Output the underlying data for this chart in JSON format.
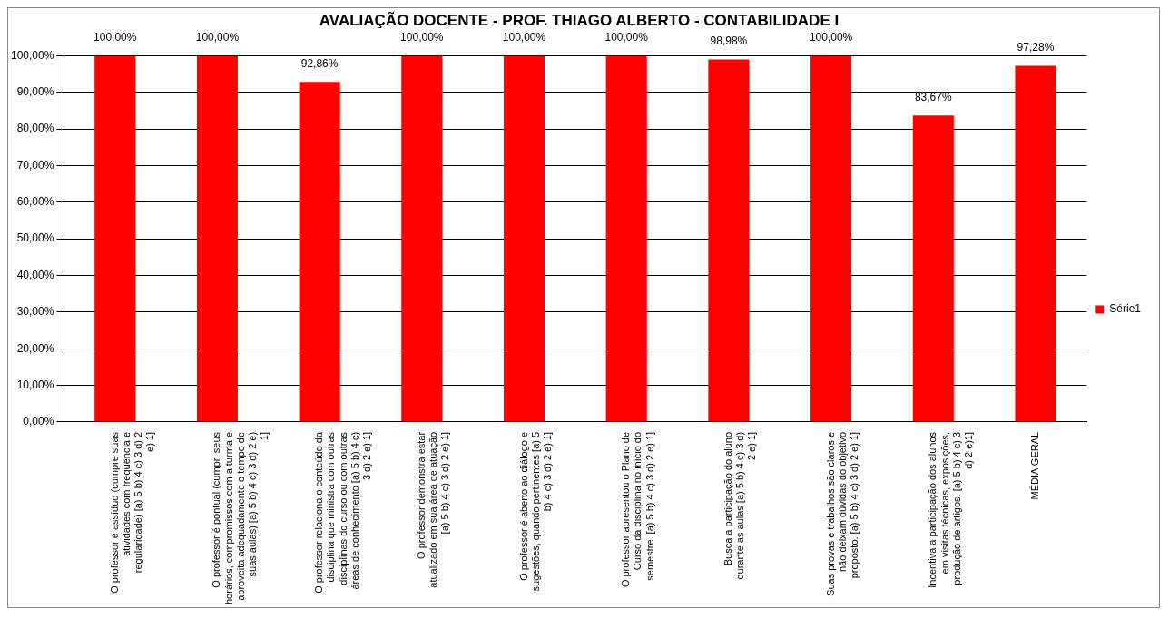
{
  "chart_data": {
    "type": "bar",
    "title": "AVALIAÇÃO DOCENTE - PROF. THIAGO ALBERTO - CONTABILIDADE I",
    "categories": [
      "O professor é assíduo (cumpre suas atividades com freqüência e regularidade) [a) 5 b) 4 c) 3 d) 2 e) 1]",
      "O professor é pontual (cumpri seus horários, compromissos com a turma e aproveita adequadamente o tempo de suas aulas) [a) 5 b) 4 c) 3 d) 2 e) 1]",
      "O professor relaciona o conteúdo da disciplina que ministra com outras disciplinas do curso ou com outras áreas de conhecimento [a) 5 b) 4 c) 3 d) 2 e) 1]",
      "O professor demonstra estar atualizado em sua área de atuação [a) 5 b) 4 c) 3 d) 2 e) 1]",
      "O professor é aberto ao diálogo e sugestões, quando pertinentes [a) 5 b) 4 c) 3 d) 2 e) 1]",
      "O professor apresentou o Plano de Curso da disciplina no início do semestre. [a) 5 b) 4 c) 3 d) 2 e) 1]",
      "Busca a participação do aluno durante as aulas [a) 5 b) 4 c) 3 d) 2 e) 1]",
      "Suas provas e trabalhos são claros e não deixam dúvidas do objetivo proposto. [a) 5 b) 4 c) 3 d) 2 e) 1]",
      "Incentiva a participação dos alunos em visitas técnicas, exposições, produção de artigos. [a) 5 b) 4 c) 3 d) 2 e)1]",
      "MÉDIA GERAL"
    ],
    "series": [
      {
        "name": "Série1",
        "color": "#ff0000",
        "values": [
          100,
          100,
          92.86,
          100,
          100,
          100,
          98.98,
          100,
          83.67,
          97.28
        ],
        "value_labels": [
          "100,00%",
          "100,00%",
          "92,86%",
          "100,00%",
          "100,00%",
          "100,00%",
          "98,98%",
          "100,00%",
          "83,67%",
          "97,28%"
        ]
      }
    ],
    "ylim": [
      0,
      100
    ],
    "yticks": [
      {
        "value": 0,
        "label": "0,00%"
      },
      {
        "value": 10,
        "label": "10,00%"
      },
      {
        "value": 20,
        "label": "20,00%"
      },
      {
        "value": 30,
        "label": "30,00%"
      },
      {
        "value": 40,
        "label": "40,00%"
      },
      {
        "value": 50,
        "label": "50,00%"
      },
      {
        "value": 60,
        "label": "60,00%"
      },
      {
        "value": 70,
        "label": "70,00%"
      },
      {
        "value": 80,
        "label": "80,00%"
      },
      {
        "value": 90,
        "label": "90,00%"
      },
      {
        "value": 100,
        "label": "100,00%"
      }
    ],
    "grid": "y",
    "legend": "right"
  }
}
